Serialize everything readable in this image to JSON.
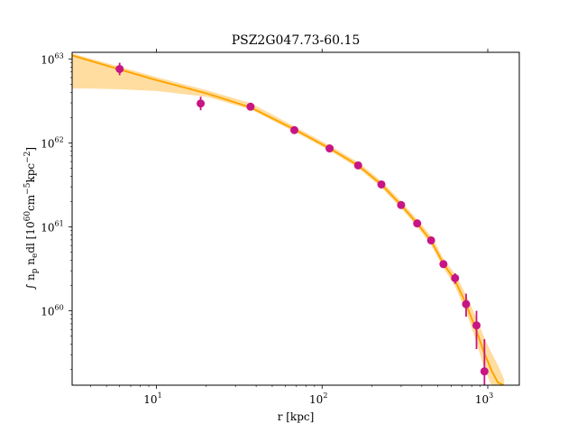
{
  "chart_data": {
    "type": "scatter",
    "title": "PSZ2G047.73-60.15",
    "xlabel": "r [kpc]",
    "ylabel": "∫ n_p n_e dl [10^60 cm^-5 kpc^-2]",
    "x_scale": "log",
    "y_scale": "log",
    "xlim": [
      3.1,
      1550
    ],
    "ylim": [
      1.3e+59,
      1.2e+63
    ],
    "x_ticks": [
      {
        "value": 10,
        "base": "10",
        "exp": "1"
      },
      {
        "value": 100,
        "base": "10",
        "exp": "2"
      },
      {
        "value": 1000,
        "base": "10",
        "exp": "3"
      }
    ],
    "y_ticks": [
      {
        "value": 1e+60,
        "base": "10",
        "exp": "60"
      },
      {
        "value": 1e+61,
        "base": "10",
        "exp": "61"
      },
      {
        "value": 1e+62,
        "base": "10",
        "exp": "62"
      },
      {
        "value": 1e+63,
        "base": "10",
        "exp": "63"
      }
    ],
    "grid": false,
    "colors": {
      "data": "#c71585",
      "model": "#ffa500",
      "band": "#ffdda0"
    },
    "series": [
      {
        "kind": "data",
        "points": [
          {
            "x": 6.0,
            "y": 7.6e+62,
            "ylo": 6.4e+62,
            "yhi": 9e+62
          },
          {
            "x": 18.5,
            "y": 2.95e+62,
            "ylo": 2.45e+62,
            "yhi": 3.55e+62
          },
          {
            "x": 37,
            "y": 2.7e+62,
            "ylo": 2.55e+62,
            "yhi": 2.85e+62
          },
          {
            "x": 68,
            "y": 1.42e+62,
            "ylo": 1.36e+62,
            "yhi": 1.48e+62
          },
          {
            "x": 111,
            "y": 8.6e+61,
            "ylo": 8.3e+61,
            "yhi": 8.9e+61
          },
          {
            "x": 165,
            "y": 5.4e+61,
            "ylo": 5.2e+61,
            "yhi": 5.6e+61
          },
          {
            "x": 228,
            "y": 3.2e+61,
            "ylo": 3.08e+61,
            "yhi": 3.32e+61
          },
          {
            "x": 300,
            "y": 1.82e+61,
            "ylo": 1.74e+61,
            "yhi": 1.9e+61
          },
          {
            "x": 375,
            "y": 1.1e+61,
            "ylo": 1.05e+61,
            "yhi": 1.15e+61
          },
          {
            "x": 455,
            "y": 6.9e+60,
            "ylo": 6.5e+60,
            "yhi": 7.3e+60
          },
          {
            "x": 540,
            "y": 3.6e+60,
            "ylo": 3.3e+60,
            "yhi": 3.9e+60
          },
          {
            "x": 635,
            "y": 2.45e+60,
            "ylo": 2.1e+60,
            "yhi": 2.8e+60
          },
          {
            "x": 740,
            "y": 1.2e+60,
            "ylo": 8.5e+59,
            "yhi": 1.6e+60
          },
          {
            "x": 855,
            "y": 6.7e+59,
            "ylo": 3.5e+59,
            "yhi": 1e+60
          },
          {
            "x": 955,
            "y": 1.9e+59,
            "ylo": 1.3e+59,
            "yhi": 4.6e+59
          }
        ]
      },
      {
        "kind": "model",
        "x": [
          3.1,
          4,
          6,
          10,
          20,
          37,
          68,
          111,
          165,
          228,
          300,
          375,
          455,
          540,
          635,
          740,
          855,
          955,
          1060,
          1150,
          1250
        ],
        "y": [
          1.1e+63,
          9.5e+62,
          7.5e+62,
          5.6e+62,
          3.9e+62,
          2.65e+62,
          1.45e+62,
          8.6e+61,
          5.4e+61,
          3.2e+61,
          1.82e+61,
          1.1e+61,
          6.8e+60,
          3.65e+60,
          2.3e+60,
          1.2e+60,
          5.8e+59,
          3.1e+59,
          1.9e+59,
          1.4e+59,
          1.3e+59
        ],
        "band_lo": [
          4.5e+62,
          4.5e+62,
          4.4e+62,
          4.2e+62,
          3.6e+62,
          2.55e+62,
          1.38e+62,
          8.2e+61,
          5.1e+61,
          3e+61,
          1.7e+61,
          1.02e+61,
          6.2e+60,
          3.3e+60,
          2e+60,
          1e+60,
          4.4e+59,
          2.1e+59,
          1.3e+59,
          1.3e+59,
          1.3e+59
        ],
        "band_hi": [
          1.15e+63,
          1e+63,
          8e+62,
          6e+62,
          4.2e+62,
          2.95e+62,
          1.55e+62,
          9.2e+61,
          5.8e+61,
          3.45e+61,
          1.98e+61,
          1.2e+61,
          7.6e+60,
          4.1e+60,
          2.7e+60,
          1.5e+60,
          8e+59,
          4.6e+59,
          3e+59,
          2.2e+59,
          1.5e+59
        ]
      }
    ]
  }
}
